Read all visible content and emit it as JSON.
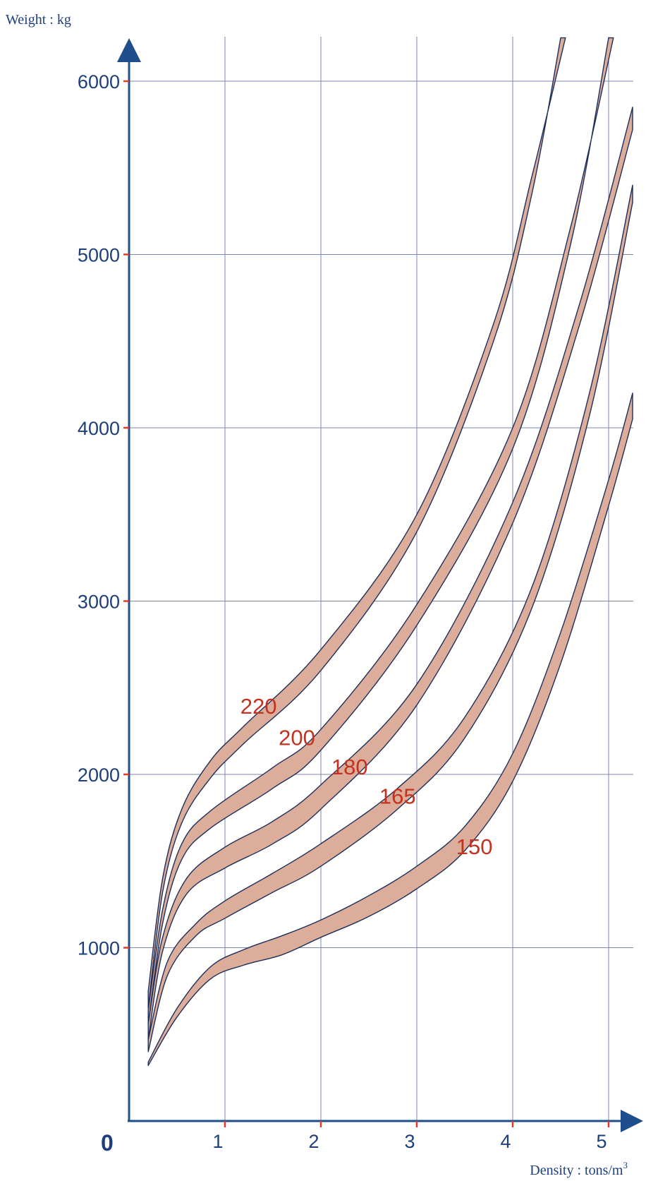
{
  "chart_data": {
    "type": "area",
    "ylabel": "Weight : kg",
    "xlabel": "Density : tons/m",
    "xlabel_superscript": "3",
    "origin_label": "0",
    "xlim": [
      0,
      5.3
    ],
    "ylim": [
      0,
      6300
    ],
    "x_ticks": [
      1,
      2,
      3,
      4,
      5
    ],
    "x_tick_labels": [
      "1",
      "2",
      "3",
      "4",
      "5"
    ],
    "y_ticks": [
      1000,
      2000,
      3000,
      4000,
      5000,
      6000
    ],
    "y_tick_labels": [
      "1000",
      "2000",
      "3000",
      "4000",
      "5000",
      "6000"
    ],
    "grid": true,
    "colors": {
      "axis": "#1e4f8c",
      "tick_marks": "#e03a2a",
      "band_fill": "#dcad9a",
      "band_edge": "#1e2f5a",
      "band_labels": "#c3321f",
      "text": "#1e3f7a"
    },
    "series": [
      {
        "name": "220",
        "label_at": [
          1.35,
          2350
        ],
        "upper": [
          [
            0.2,
            750
          ],
          [
            0.35,
            1400
          ],
          [
            0.55,
            1800
          ],
          [
            0.85,
            2080
          ],
          [
            1.2,
            2280
          ],
          [
            2.0,
            2720
          ],
          [
            3.0,
            3500
          ],
          [
            3.8,
            4600
          ],
          [
            4.2,
            5450
          ],
          [
            4.55,
            6250
          ]
        ],
        "lower": [
          [
            0.2,
            650
          ],
          [
            0.35,
            1320
          ],
          [
            0.55,
            1720
          ],
          [
            0.85,
            1980
          ],
          [
            1.2,
            2180
          ],
          [
            2.0,
            2600
          ],
          [
            3.0,
            3400
          ],
          [
            3.8,
            4500
          ],
          [
            4.2,
            5350
          ],
          [
            4.5,
            6250
          ]
        ]
      },
      {
        "name": "200",
        "label_at": [
          1.75,
          2170
        ],
        "upper": [
          [
            0.2,
            640
          ],
          [
            0.35,
            1220
          ],
          [
            0.55,
            1600
          ],
          [
            0.85,
            1790
          ],
          [
            1.5,
            2040
          ],
          [
            2.0,
            2260
          ],
          [
            3.0,
            2980
          ],
          [
            4.0,
            4000
          ],
          [
            4.6,
            5150
          ],
          [
            5.05,
            6250
          ]
        ],
        "lower": [
          [
            0.2,
            560
          ],
          [
            0.35,
            1140
          ],
          [
            0.55,
            1510
          ],
          [
            0.85,
            1690
          ],
          [
            1.5,
            1920
          ],
          [
            2.0,
            2140
          ],
          [
            3.0,
            2860
          ],
          [
            4.0,
            3880
          ],
          [
            4.6,
            5050
          ],
          [
            5.0,
            6250
          ]
        ]
      },
      {
        "name": "180",
        "label_at": [
          2.3,
          2000
        ],
        "upper": [
          [
            0.2,
            560
          ],
          [
            0.35,
            1060
          ],
          [
            0.6,
            1400
          ],
          [
            1.0,
            1580
          ],
          [
            1.5,
            1730
          ],
          [
            2.0,
            1940
          ],
          [
            3.0,
            2520
          ],
          [
            4.0,
            3570
          ],
          [
            4.7,
            4720
          ],
          [
            5.25,
            5850
          ]
        ],
        "lower": [
          [
            0.2,
            470
          ],
          [
            0.35,
            980
          ],
          [
            0.6,
            1310
          ],
          [
            1.0,
            1460
          ],
          [
            1.5,
            1600
          ],
          [
            2.0,
            1800
          ],
          [
            3.0,
            2400
          ],
          [
            4.0,
            3450
          ],
          [
            4.7,
            4600
          ],
          [
            5.25,
            5720
          ]
        ]
      },
      {
        "name": "165",
        "label_at": [
          2.8,
          1830
        ],
        "upper": [
          [
            0.2,
            470
          ],
          [
            0.4,
            920
          ],
          [
            0.7,
            1140
          ],
          [
            1.0,
            1270
          ],
          [
            1.5,
            1430
          ],
          [
            2.0,
            1600
          ],
          [
            2.8,
            1920
          ],
          [
            3.5,
            2330
          ],
          [
            4.2,
            3080
          ],
          [
            4.8,
            4200
          ],
          [
            5.25,
            5400
          ]
        ],
        "lower": [
          [
            0.2,
            400
          ],
          [
            0.4,
            840
          ],
          [
            0.7,
            1070
          ],
          [
            1.0,
            1170
          ],
          [
            1.5,
            1320
          ],
          [
            2.0,
            1470
          ],
          [
            2.8,
            1800
          ],
          [
            3.5,
            2210
          ],
          [
            4.2,
            2960
          ],
          [
            4.8,
            4070
          ],
          [
            5.25,
            5300
          ]
        ]
      },
      {
        "name": "150",
        "label_at": [
          3.6,
          1540
        ],
        "upper": [
          [
            0.2,
            340
          ],
          [
            0.5,
            650
          ],
          [
            0.85,
            890
          ],
          [
            1.2,
            990
          ],
          [
            1.6,
            1070
          ],
          [
            2.0,
            1160
          ],
          [
            2.5,
            1300
          ],
          [
            3.0,
            1470
          ],
          [
            3.5,
            1700
          ],
          [
            4.0,
            2120
          ],
          [
            4.5,
            2820
          ],
          [
            5.0,
            3700
          ],
          [
            5.25,
            4200
          ]
        ],
        "lower": [
          [
            0.2,
            320
          ],
          [
            0.5,
            600
          ],
          [
            0.85,
            820
          ],
          [
            1.2,
            900
          ],
          [
            1.6,
            960
          ],
          [
            2.0,
            1060
          ],
          [
            2.5,
            1180
          ],
          [
            3.0,
            1340
          ],
          [
            3.5,
            1560
          ],
          [
            4.0,
            1960
          ],
          [
            4.5,
            2640
          ],
          [
            5.0,
            3550
          ],
          [
            5.25,
            4050
          ]
        ]
      }
    ]
  }
}
